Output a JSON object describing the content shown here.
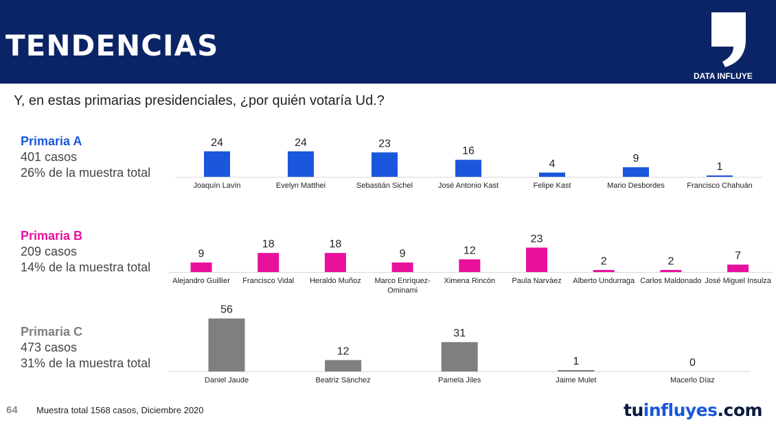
{
  "header": {
    "title": "TENDENCIAS",
    "brand": "DATA INFLUYE"
  },
  "question": "Y, en estas primarias presidenciales, ¿por quién votaría Ud.?",
  "sections": [
    {
      "title": "Primaria A",
      "cases": "401 casos",
      "share": "26% de la muestra total",
      "color": "#1a57dc"
    },
    {
      "title": "Primaria B",
      "cases": "209 casos",
      "share": "14% de la muestra total",
      "color": "#e8119c"
    },
    {
      "title": "Primaria C",
      "cases": "473 casos",
      "share": "31% de la muestra total",
      "color": "#7f7f7f"
    }
  ],
  "chart_data": [
    {
      "type": "bar",
      "title": "Primaria A",
      "categories": [
        "Joaquín Lavín",
        "Evelyn Matthei",
        "Sebastián Sichel",
        "José Antonio Kast",
        "Felipe Kast",
        "Mario Desbordes",
        "Francisco Chahuán"
      ],
      "values": [
        24,
        24,
        23,
        16,
        4,
        9,
        1
      ],
      "color": "#1a57dc"
    },
    {
      "type": "bar",
      "title": "Primaria B",
      "categories": [
        "Alejandro Guillier",
        "Francisco Vidal",
        "Heraldo Muñoz",
        "Marco Enríquez-Ominami",
        "Ximena Rincón",
        "Paula Narváez",
        "Alberto Undurraga",
        "Carlos Maldonado",
        "José Miguel Insulza"
      ],
      "values": [
        9,
        18,
        18,
        9,
        12,
        23,
        2,
        2,
        7
      ],
      "color": "#e8119c"
    },
    {
      "type": "bar",
      "title": "Primaria C",
      "categories": [
        "Daniel Jaude",
        "Beatriz Sánchez",
        "Pamela Jiles",
        "Jaime Mulet",
        "Macerlo Díaz"
      ],
      "values": [
        56,
        12,
        31,
        1,
        0
      ],
      "color": "#7f7f7f"
    }
  ],
  "footer": {
    "page_number": "64",
    "note": "Muestra total 1568 casos,  Diciembre 2020",
    "logo_part1": "tu",
    "logo_part2": "influyes",
    "logo_part3": ".com"
  }
}
